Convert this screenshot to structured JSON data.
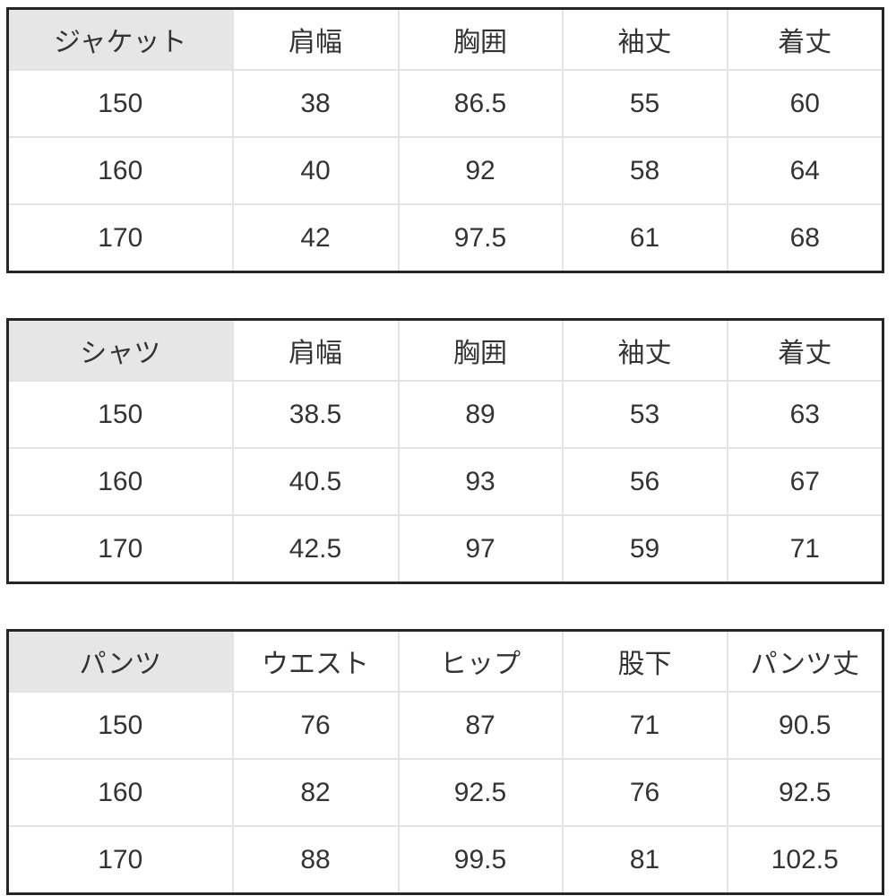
{
  "colors": {
    "outer_border": "#262626",
    "grid_line": "#e3e3e3",
    "header_fill": "#e6e6e6",
    "text": "#333333",
    "background": "#ffffff"
  },
  "tables": [
    {
      "label": "ジャケット",
      "columns": [
        "肩幅",
        "胸囲",
        "袖丈",
        "着丈"
      ],
      "rows": [
        {
          "size": "150",
          "values": [
            "38",
            "86.5",
            "55",
            "60"
          ]
        },
        {
          "size": "160",
          "values": [
            "40",
            "92",
            "58",
            "64"
          ]
        },
        {
          "size": "170",
          "values": [
            "42",
            "97.5",
            "61",
            "68"
          ]
        }
      ]
    },
    {
      "label": "シャツ",
      "columns": [
        "肩幅",
        "胸囲",
        "袖丈",
        "着丈"
      ],
      "rows": [
        {
          "size": "150",
          "values": [
            "38.5",
            "89",
            "53",
            "63"
          ]
        },
        {
          "size": "160",
          "values": [
            "40.5",
            "93",
            "56",
            "67"
          ]
        },
        {
          "size": "170",
          "values": [
            "42.5",
            "97",
            "59",
            "71"
          ]
        }
      ]
    },
    {
      "label": "パンツ",
      "columns": [
        "ウエスト",
        "ヒップ",
        "股下",
        "パンツ丈"
      ],
      "rows": [
        {
          "size": "150",
          "values": [
            "76",
            "87",
            "71",
            "90.5"
          ]
        },
        {
          "size": "160",
          "values": [
            "82",
            "92.5",
            "76",
            "92.5"
          ]
        },
        {
          "size": "170",
          "values": [
            "88",
            "99.5",
            "81",
            "102.5"
          ]
        }
      ]
    }
  ]
}
